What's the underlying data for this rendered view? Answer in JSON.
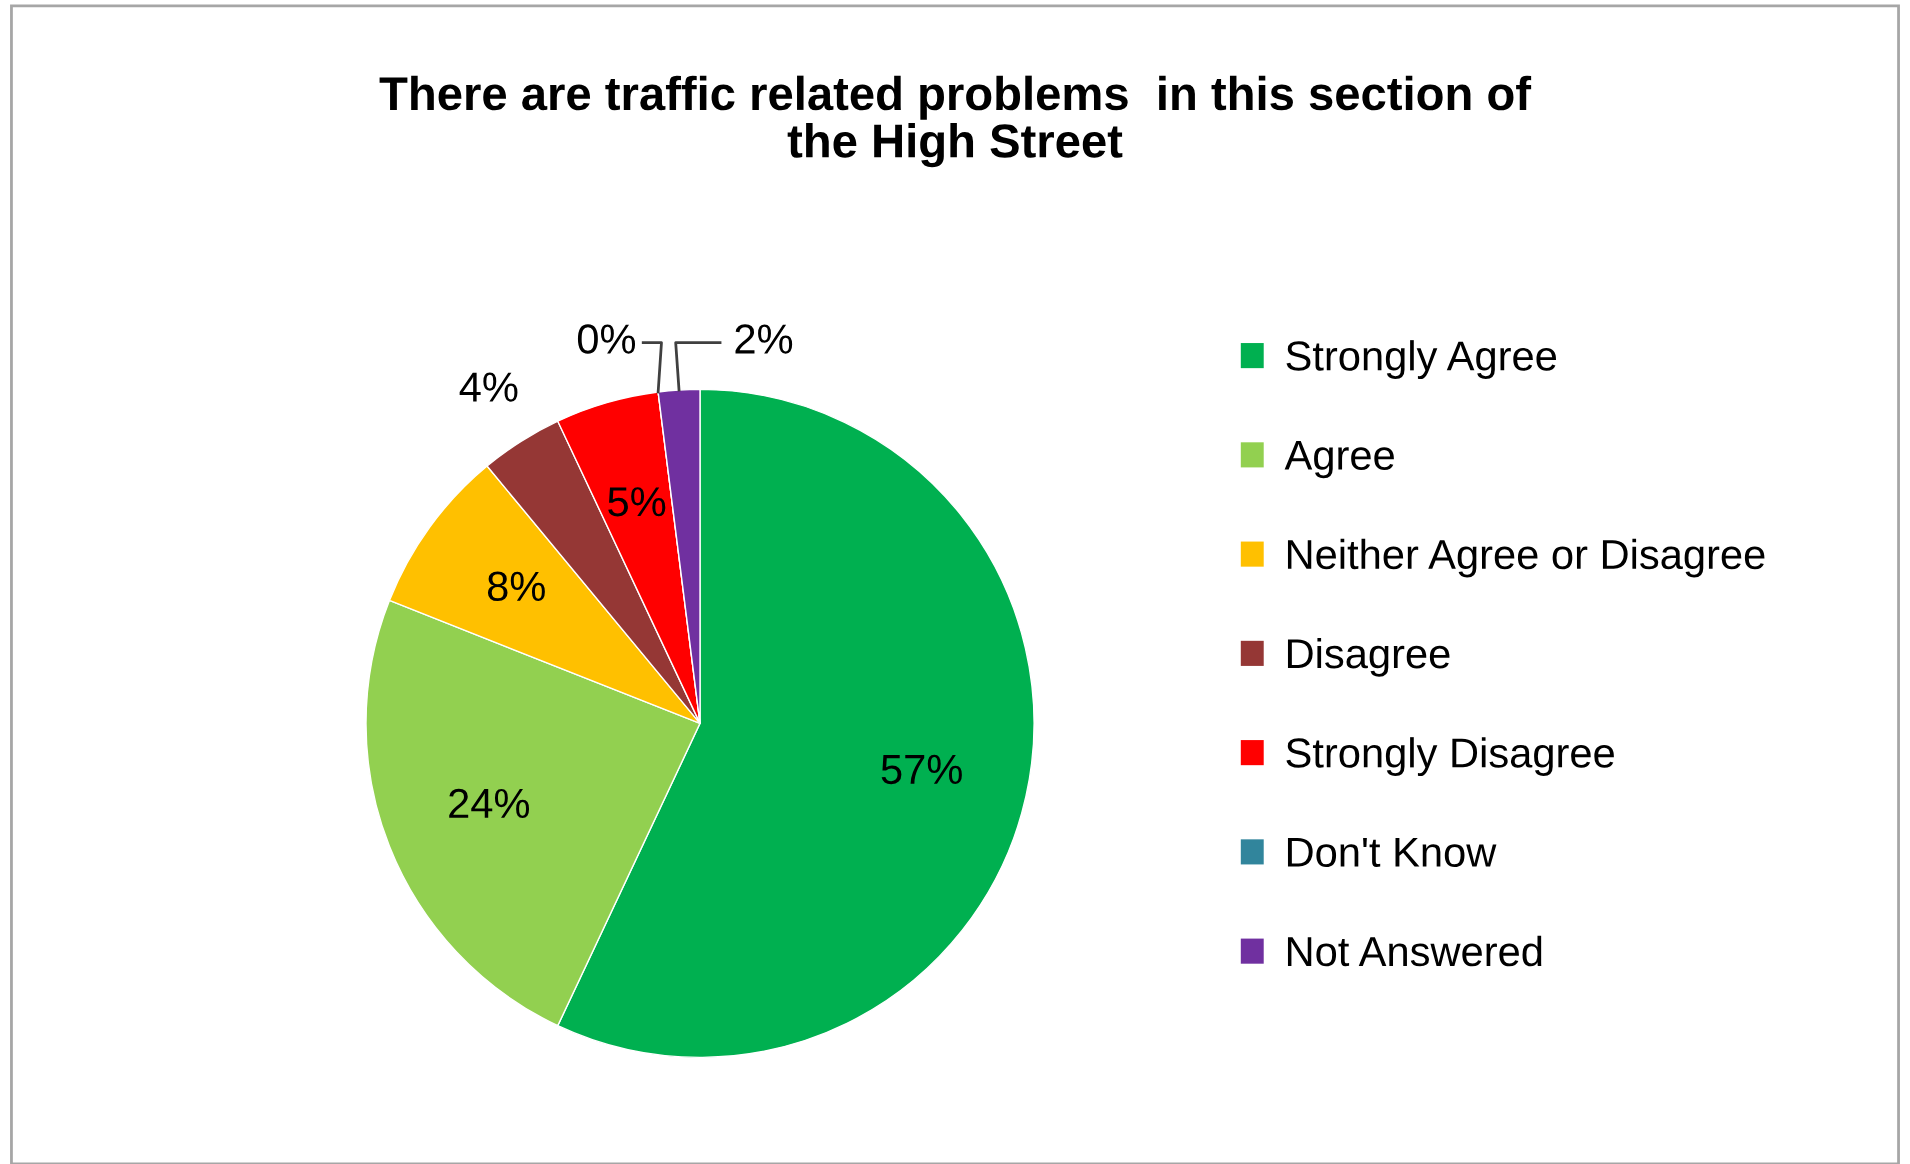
{
  "chart_data": {
    "type": "pie",
    "title": "There are traffic related problems  in this section of\nthe High Street",
    "categories": [
      "Strongly Agree",
      "Agree",
      "Neither Agree or Disagree",
      "Disagree",
      "Strongly Disagree",
      "Don't Know",
      "Not Answered"
    ],
    "values": [
      57,
      24,
      8,
      4,
      5,
      0,
      2
    ],
    "colors": [
      "#00b050",
      "#92d050",
      "#ffc000",
      "#953735",
      "#ff0000",
      "#31859c",
      "#7030a0"
    ],
    "value_labels": [
      "57%",
      "24%",
      "8%",
      "4%",
      "5%",
      "0%",
      "2%"
    ],
    "legend": "right"
  }
}
